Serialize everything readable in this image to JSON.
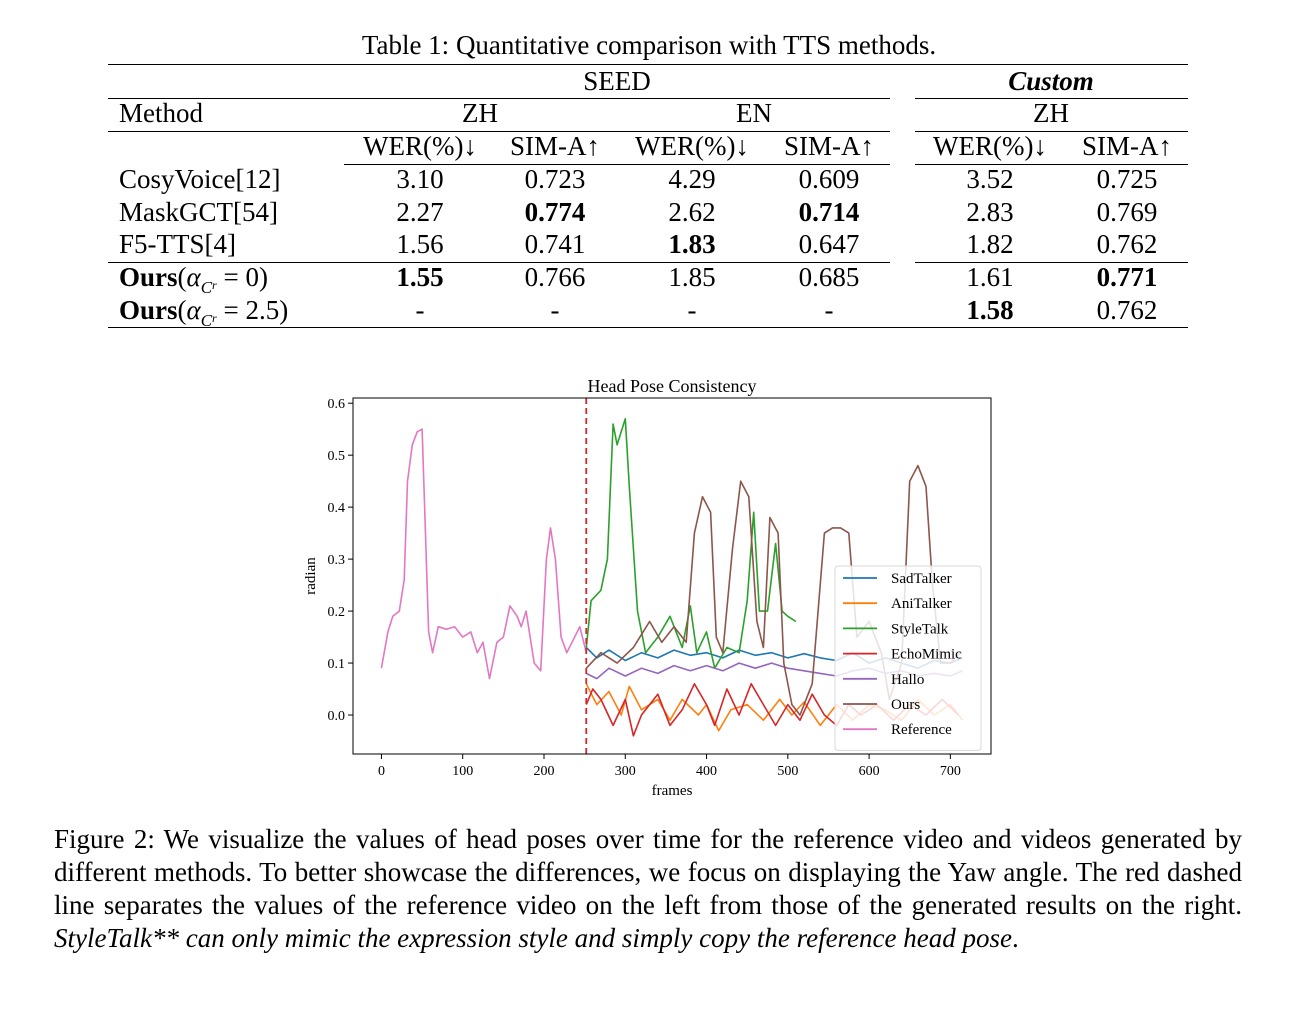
{
  "table": {
    "caption": "Table 1: Quantitative comparison with TTS methods.",
    "group_headers": {
      "seed": "SEED",
      "custom": "Custom"
    },
    "method_header": "Method",
    "lang_headers": {
      "seed_zh": "ZH",
      "seed_en": "EN",
      "custom_zh": "ZH"
    },
    "metric_headers": [
      "WER(%)↓",
      "SIM-A↑",
      "WER(%)↓",
      "SIM-A↑",
      "WER(%)↓",
      "SIM-A↑"
    ],
    "rows": [
      {
        "method": "CosyVoice[12]",
        "values": [
          "3.10",
          "0.723",
          "4.29",
          "0.609",
          "3.52",
          "0.725"
        ]
      },
      {
        "method": "MaskGCT[54]",
        "values": [
          "2.27",
          "0.774",
          "2.62",
          "0.714",
          "2.83",
          "0.769"
        ]
      },
      {
        "method": "F5-TTS[4]",
        "values": [
          "1.56",
          "0.741",
          "1.83",
          "0.647",
          "1.82",
          "0.762"
        ]
      },
      {
        "method": "Ours",
        "alpha_symbol": "α",
        "alpha_sub": "C",
        "alpha_subsub": "r",
        "alpha_value": " = 0)",
        "values": [
          "1.55",
          "0.766",
          "1.85",
          "0.685",
          "1.61",
          "0.771"
        ]
      },
      {
        "method": "Ours",
        "alpha_symbol": "α",
        "alpha_sub": "C",
        "alpha_subsub": "r",
        "alpha_value": " = 2.5)",
        "values": [
          "-",
          "-",
          "-",
          "-",
          "1.58",
          "0.762"
        ]
      }
    ]
  },
  "chart_data": {
    "type": "line",
    "title": "Head Pose Consistency",
    "xlabel": "frames",
    "ylabel": "radian",
    "xlim": [
      -35,
      750
    ],
    "ylim": [
      -0.075,
      0.61
    ],
    "xticks": [
      0,
      100,
      200,
      300,
      400,
      500,
      600,
      700
    ],
    "yticks": [
      0.0,
      0.1,
      0.2,
      0.3,
      0.4,
      0.5,
      0.6
    ],
    "divider_x": 252,
    "legend_position": "lower-right",
    "series": [
      {
        "name": "SadTalker",
        "color": "#1f77b4",
        "points": [
          [
            252,
            0.13
          ],
          [
            265,
            0.11
          ],
          [
            280,
            0.125
          ],
          [
            300,
            0.105
          ],
          [
            320,
            0.12
          ],
          [
            340,
            0.11
          ],
          [
            360,
            0.125
          ],
          [
            380,
            0.115
          ],
          [
            400,
            0.12
          ],
          [
            420,
            0.11
          ],
          [
            440,
            0.125
          ],
          [
            460,
            0.115
          ],
          [
            480,
            0.12
          ],
          [
            500,
            0.11
          ],
          [
            520,
            0.118
          ],
          [
            540,
            0.11
          ],
          [
            560,
            0.105
          ],
          [
            580,
            0.12
          ],
          [
            600,
            0.1
          ],
          [
            620,
            0.11
          ],
          [
            640,
            0.1
          ],
          [
            660,
            0.09
          ],
          [
            680,
            0.105
          ],
          [
            700,
            0.1
          ],
          [
            715,
            0.11
          ]
        ]
      },
      {
        "name": "AniTalker",
        "color": "#ff7f0e",
        "points": [
          [
            252,
            0.06
          ],
          [
            265,
            0.02
          ],
          [
            280,
            0.045
          ],
          [
            295,
            0.0
          ],
          [
            305,
            0.055
          ],
          [
            320,
            0.01
          ],
          [
            340,
            0.03
          ],
          [
            355,
            -0.01
          ],
          [
            370,
            0.03
          ],
          [
            390,
            0.0
          ],
          [
            400,
            0.02
          ],
          [
            415,
            -0.03
          ],
          [
            430,
            0.01
          ],
          [
            450,
            0.02
          ],
          [
            470,
            -0.01
          ],
          [
            490,
            0.03
          ],
          [
            505,
            0.0
          ],
          [
            520,
            0.025
          ],
          [
            540,
            -0.02
          ],
          [
            560,
            0.02
          ],
          [
            580,
            -0.01
          ],
          [
            600,
            0.02
          ],
          [
            620,
            0.01
          ],
          [
            640,
            -0.01
          ],
          [
            660,
            0.03
          ],
          [
            680,
            0.0
          ],
          [
            700,
            0.02
          ],
          [
            715,
            -0.01
          ]
        ]
      },
      {
        "name": "StyleTalk",
        "color": "#2ca02c",
        "points": [
          [
            252,
            0.13
          ],
          [
            258,
            0.22
          ],
          [
            270,
            0.24
          ],
          [
            278,
            0.3
          ],
          [
            285,
            0.56
          ],
          [
            290,
            0.52
          ],
          [
            300,
            0.57
          ],
          [
            305,
            0.44
          ],
          [
            315,
            0.2
          ],
          [
            325,
            0.12
          ],
          [
            340,
            0.15
          ],
          [
            355,
            0.19
          ],
          [
            370,
            0.13
          ],
          [
            380,
            0.21
          ],
          [
            388,
            0.12
          ],
          [
            400,
            0.16
          ],
          [
            410,
            0.09
          ],
          [
            425,
            0.13
          ],
          [
            440,
            0.12
          ],
          [
            450,
            0.22
          ],
          [
            458,
            0.39
          ],
          [
            465,
            0.2
          ],
          [
            475,
            0.2
          ],
          [
            485,
            0.33
          ],
          [
            493,
            0.2
          ],
          [
            500,
            0.19
          ],
          [
            510,
            0.18
          ]
        ]
      },
      {
        "name": "EchoMimic",
        "color": "#d62728",
        "points": [
          [
            252,
            0.02
          ],
          [
            260,
            0.05
          ],
          [
            270,
            0.03
          ],
          [
            285,
            -0.02
          ],
          [
            300,
            0.03
          ],
          [
            310,
            -0.04
          ],
          [
            320,
            0.0
          ],
          [
            340,
            0.04
          ],
          [
            355,
            -0.02
          ],
          [
            370,
            0.01
          ],
          [
            385,
            0.06
          ],
          [
            400,
            0.02
          ],
          [
            410,
            -0.02
          ],
          [
            425,
            0.05
          ],
          [
            440,
            0.0
          ],
          [
            455,
            0.06
          ],
          [
            470,
            0.02
          ],
          [
            485,
            -0.02
          ],
          [
            500,
            0.02
          ],
          [
            515,
            -0.01
          ],
          [
            530,
            0.04
          ],
          [
            545,
            0.0
          ],
          [
            560,
            -0.02
          ],
          [
            575,
            0.02
          ],
          [
            590,
            0.0
          ],
          [
            610,
            0.02
          ],
          [
            630,
            -0.01
          ],
          [
            650,
            0.02
          ],
          [
            670,
            0.0
          ],
          [
            690,
            0.03
          ],
          [
            710,
            0.0
          ]
        ]
      },
      {
        "name": "Hallo",
        "color": "#9467bd",
        "points": [
          [
            252,
            0.08
          ],
          [
            265,
            0.07
          ],
          [
            280,
            0.09
          ],
          [
            300,
            0.075
          ],
          [
            320,
            0.09
          ],
          [
            340,
            0.08
          ],
          [
            360,
            0.095
          ],
          [
            380,
            0.085
          ],
          [
            400,
            0.095
          ],
          [
            420,
            0.085
          ],
          [
            440,
            0.1
          ],
          [
            460,
            0.09
          ],
          [
            480,
            0.1
          ],
          [
            500,
            0.09
          ],
          [
            520,
            0.085
          ],
          [
            540,
            0.08
          ],
          [
            560,
            0.075
          ],
          [
            580,
            0.085
          ],
          [
            600,
            0.09
          ],
          [
            620,
            0.08
          ],
          [
            640,
            0.085
          ],
          [
            660,
            0.075
          ],
          [
            680,
            0.08
          ],
          [
            700,
            0.075
          ],
          [
            715,
            0.085
          ]
        ]
      },
      {
        "name": "Ours",
        "color": "#8c564b",
        "points": [
          [
            252,
            0.09
          ],
          [
            270,
            0.12
          ],
          [
            290,
            0.1
          ],
          [
            310,
            0.13
          ],
          [
            330,
            0.18
          ],
          [
            345,
            0.14
          ],
          [
            360,
            0.17
          ],
          [
            375,
            0.14
          ],
          [
            385,
            0.35
          ],
          [
            395,
            0.42
          ],
          [
            405,
            0.39
          ],
          [
            412,
            0.15
          ],
          [
            420,
            0.12
          ],
          [
            432,
            0.32
          ],
          [
            442,
            0.45
          ],
          [
            452,
            0.42
          ],
          [
            462,
            0.18
          ],
          [
            470,
            0.13
          ],
          [
            478,
            0.38
          ],
          [
            488,
            0.35
          ],
          [
            495,
            0.1
          ],
          [
            505,
            0.02
          ],
          [
            515,
            0.0
          ],
          [
            530,
            0.06
          ],
          [
            545,
            0.35
          ],
          [
            555,
            0.36
          ],
          [
            565,
            0.36
          ],
          [
            575,
            0.35
          ],
          [
            585,
            0.15
          ],
          [
            600,
            0.18
          ],
          [
            615,
            0.12
          ],
          [
            625,
            0.03
          ],
          [
            640,
            0.1
          ],
          [
            650,
            0.45
          ],
          [
            660,
            0.48
          ],
          [
            670,
            0.44
          ],
          [
            678,
            0.25
          ],
          [
            688,
            0.1
          ],
          [
            700,
            0.1
          ],
          [
            712,
            0.12
          ]
        ]
      },
      {
        "name": "Reference",
        "color": "#e377c2",
        "points": [
          [
            0,
            0.09
          ],
          [
            8,
            0.16
          ],
          [
            14,
            0.19
          ],
          [
            22,
            0.2
          ],
          [
            28,
            0.26
          ],
          [
            32,
            0.45
          ],
          [
            38,
            0.52
          ],
          [
            44,
            0.545
          ],
          [
            50,
            0.55
          ],
          [
            54,
            0.36
          ],
          [
            58,
            0.16
          ],
          [
            63,
            0.12
          ],
          [
            70,
            0.17
          ],
          [
            80,
            0.165
          ],
          [
            90,
            0.17
          ],
          [
            100,
            0.15
          ],
          [
            110,
            0.16
          ],
          [
            118,
            0.12
          ],
          [
            125,
            0.14
          ],
          [
            133,
            0.07
          ],
          [
            142,
            0.14
          ],
          [
            150,
            0.15
          ],
          [
            158,
            0.21
          ],
          [
            167,
            0.19
          ],
          [
            172,
            0.17
          ],
          [
            178,
            0.2
          ],
          [
            188,
            0.1
          ],
          [
            196,
            0.085
          ],
          [
            203,
            0.3
          ],
          [
            208,
            0.36
          ],
          [
            214,
            0.3
          ],
          [
            221,
            0.15
          ],
          [
            228,
            0.12
          ],
          [
            236,
            0.145
          ],
          [
            244,
            0.17
          ],
          [
            252,
            0.12
          ]
        ]
      }
    ]
  },
  "figure_caption": {
    "text": "Figure 2: We visualize the values of head poses over time for the reference video and videos generated by different methods. To better showcase the differences, we focus on displaying the Yaw angle. The red dashed line separates the values of the reference video on the left from those of the generated results on the right. ",
    "italic_text": "StyleTalk** can only mimic the expression style and simply copy the reference head pose",
    "trailing_text": "."
  }
}
